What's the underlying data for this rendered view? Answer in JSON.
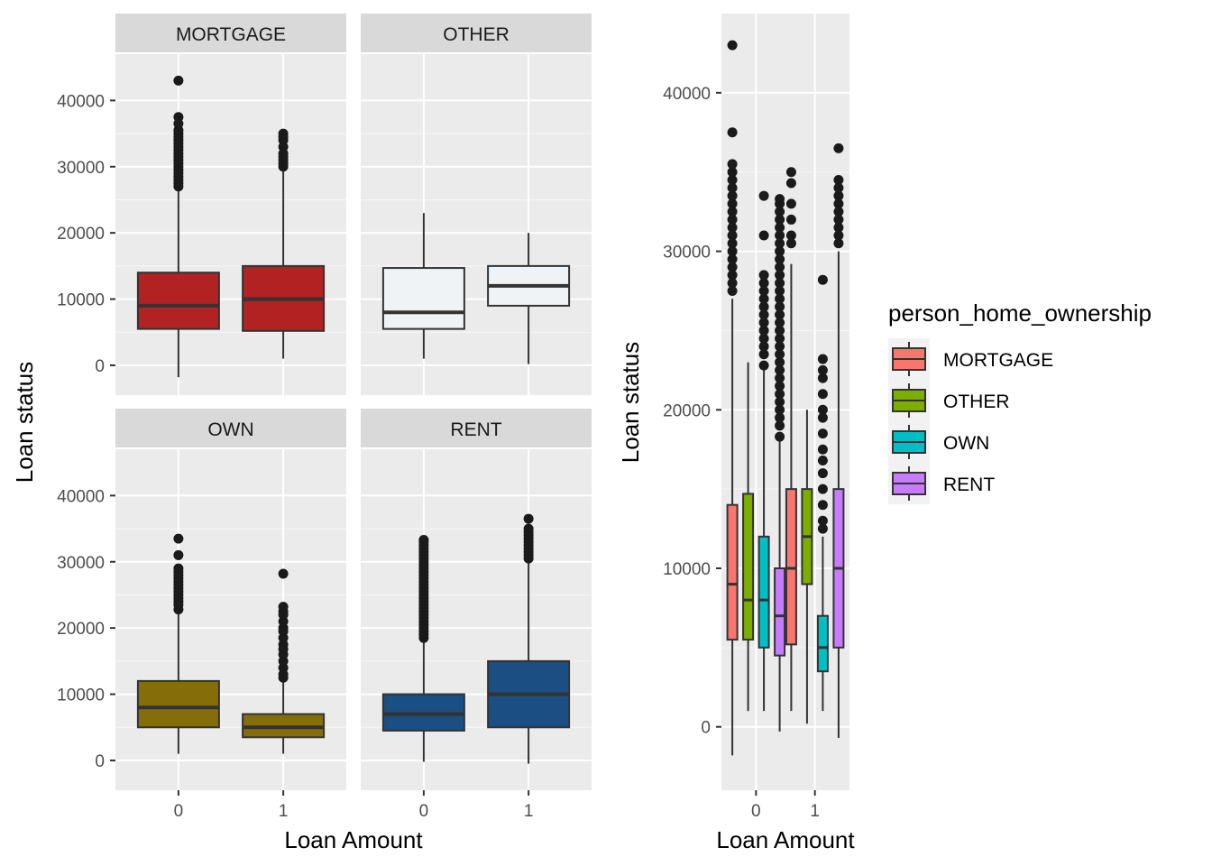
{
  "chart_data": [
    {
      "type": "boxplot",
      "layout": "facet_wrap",
      "xlabel": "Loan Amount",
      "ylabel": "Loan status",
      "ylim": [
        -4500,
        47000
      ],
      "y_ticks": [
        0,
        10000,
        20000,
        30000,
        40000
      ],
      "x_categories": [
        "0",
        "1"
      ],
      "facets": [
        {
          "label": "MORTGAGE",
          "color": "#B22222",
          "boxes": [
            {
              "x": "0",
              "lower_whisker": -1800,
              "q1": 5500,
              "median": 9000,
              "q3": 14000,
              "upper_whisker": 26800,
              "outliers": [
                27000,
                27500,
                28000,
                28500,
                29000,
                29500,
                30000,
                30500,
                31000,
                31500,
                32000,
                32500,
                33000,
                33500,
                34000,
                34500,
                35000,
                35500,
                36500,
                37500,
                43000
              ]
            },
            {
              "x": "1",
              "lower_whisker": 1000,
              "q1": 5200,
              "median": 10000,
              "q3": 15000,
              "upper_whisker": 29800,
              "outliers": [
                30000,
                30500,
                31000,
                31500,
                32000,
                33000,
                34000,
                34500,
                35000
              ]
            }
          ]
        },
        {
          "label": "OTHER",
          "color": "#F0F3F5",
          "boxes": [
            {
              "x": "0",
              "lower_whisker": 1000,
              "q1": 5500,
              "median": 8000,
              "q3": 14700,
              "upper_whisker": 23000,
              "outliers": []
            },
            {
              "x": "1",
              "lower_whisker": 200,
              "q1": 9000,
              "median": 12000,
              "q3": 15000,
              "upper_whisker": 20000,
              "outliers": []
            }
          ]
        },
        {
          "label": "OWN",
          "color": "#856D0A",
          "boxes": [
            {
              "x": "0",
              "lower_whisker": 1000,
              "q1": 5000,
              "median": 8000,
              "q3": 12000,
              "upper_whisker": 22500,
              "outliers": [
                22800,
                23500,
                24000,
                24500,
                25000,
                25500,
                26000,
                26500,
                27000,
                27500,
                28000,
                28500,
                29000,
                31000,
                33500
              ]
            },
            {
              "x": "1",
              "lower_whisker": 1000,
              "q1": 3500,
              "median": 5000,
              "q3": 7000,
              "upper_whisker": 12000,
              "outliers": [
                12500,
                13000,
                14000,
                15000,
                16000,
                16800,
                17500,
                18500,
                19500,
                20000,
                21000,
                22000,
                22500,
                23200,
                28200
              ]
            }
          ]
        },
        {
          "label": "RENT",
          "color": "#1B4E82",
          "boxes": [
            {
              "x": "0",
              "lower_whisker": -200,
              "q1": 4500,
              "median": 7000,
              "q3": 10000,
              "upper_whisker": 18200,
              "outliers": [
                18500,
                19000,
                19500,
                20000,
                20500,
                21000,
                21500,
                22000,
                22500,
                23000,
                23500,
                24000,
                24500,
                25000,
                25500,
                26000,
                26500,
                27000,
                27500,
                28000,
                28500,
                29000,
                29500,
                30000,
                30500,
                31000,
                31500,
                32000,
                32500,
                33000,
                33300
              ]
            },
            {
              "x": "1",
              "lower_whisker": -500,
              "q1": 5000,
              "median": 10000,
              "q3": 15000,
              "upper_whisker": 30000,
              "outliers": [
                30500,
                31000,
                31500,
                32000,
                32500,
                33000,
                33500,
                34000,
                34500,
                35000,
                36500
              ]
            }
          ]
        }
      ]
    },
    {
      "type": "boxplot",
      "layout": "grouped",
      "xlabel": "Loan Amount",
      "ylabel": "Loan status",
      "ylim": [
        -4000,
        45000
      ],
      "y_ticks": [
        0,
        10000,
        20000,
        30000,
        40000
      ],
      "x_categories": [
        "0",
        "1"
      ],
      "legend": {
        "title": "person_home_ownership",
        "position": "right"
      },
      "series": [
        {
          "name": "MORTGAGE",
          "color": "#F8766D",
          "boxes": [
            {
              "x": "0",
              "lower_whisker": -1800,
              "q1": 5500,
              "median": 9000,
              "q3": 14000,
              "upper_whisker": 27000,
              "outliers": [
                27500,
                28000,
                28500,
                29000,
                29500,
                30000,
                30500,
                31000,
                31500,
                32000,
                32500,
                33000,
                33500,
                34000,
                34500,
                35000,
                35500,
                37500,
                43000
              ]
            },
            {
              "x": "1",
              "lower_whisker": 1000,
              "q1": 5200,
              "median": 10000,
              "q3": 15000,
              "upper_whisker": 29200,
              "outliers": [
                30500,
                31000,
                32000,
                33000,
                34300,
                35000
              ]
            }
          ]
        },
        {
          "name": "OTHER",
          "color": "#7CAE00",
          "boxes": [
            {
              "x": "0",
              "lower_whisker": 1000,
              "q1": 5500,
              "median": 8000,
              "q3": 14700,
              "upper_whisker": 23000,
              "outliers": []
            },
            {
              "x": "1",
              "lower_whisker": 200,
              "q1": 9000,
              "median": 12000,
              "q3": 15000,
              "upper_whisker": 20000,
              "outliers": []
            }
          ]
        },
        {
          "name": "OWN",
          "color": "#00BFC4",
          "boxes": [
            {
              "x": "0",
              "lower_whisker": 1000,
              "q1": 5000,
              "median": 8000,
              "q3": 12000,
              "upper_whisker": 22500,
              "outliers": [
                22800,
                23500,
                24000,
                24500,
                25000,
                25500,
                26000,
                26500,
                27000,
                27500,
                28000,
                28500,
                31000,
                33500
              ]
            },
            {
              "x": "1",
              "lower_whisker": 1000,
              "q1": 3500,
              "median": 5000,
              "q3": 7000,
              "upper_whisker": 12000,
              "outliers": [
                12500,
                13000,
                14000,
                15000,
                16000,
                16800,
                17500,
                18500,
                19500,
                20000,
                21000,
                22000,
                22500,
                23200,
                28200
              ]
            }
          ]
        },
        {
          "name": "RENT",
          "color": "#C77CFF",
          "boxes": [
            {
              "x": "0",
              "lower_whisker": -300,
              "q1": 4500,
              "median": 7000,
              "q3": 10000,
              "upper_whisker": 18000,
              "outliers": [
                18300,
                19000,
                19500,
                20000,
                20500,
                21000,
                21500,
                22000,
                22500,
                23000,
                23500,
                24000,
                24500,
                25000,
                25500,
                26000,
                26500,
                27000,
                27500,
                28000,
                28500,
                29000,
                29500,
                30000,
                30500,
                31000,
                31500,
                32000,
                32500,
                33000,
                33300
              ]
            },
            {
              "x": "1",
              "lower_whisker": -700,
              "q1": 5000,
              "median": 10000,
              "q3": 15000,
              "upper_whisker": 30000,
              "outliers": [
                30500,
                31000,
                31500,
                32000,
                32500,
                33000,
                33500,
                34000,
                34500,
                36500
              ]
            }
          ]
        }
      ]
    }
  ]
}
